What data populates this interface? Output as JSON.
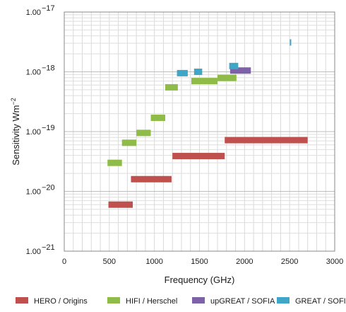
{
  "chart_data": {
    "type": "bar",
    "subtype": "horizontal-range",
    "xlabel": "Frequency (GHz)",
    "ylabel": "Sensitivity Wm",
    "ylabel_superscript": "−2",
    "xlim": [
      0,
      3000
    ],
    "ylim": [
      1e-21,
      1e-17
    ],
    "yscale": "log",
    "grid": true,
    "x_ticks": [
      {
        "value": 0,
        "label": "0"
      },
      {
        "value": 500,
        "label": "500"
      },
      {
        "value": 1000,
        "label": "1000"
      },
      {
        "value": 1500,
        "label": "1500"
      },
      {
        "value": 2000,
        "label": "2000"
      },
      {
        "value": 2500,
        "label": "2500"
      },
      {
        "value": 3000,
        "label": "3000"
      }
    ],
    "y_ticks": [
      {
        "value": 1e-21,
        "label": "1.00",
        "exp": "−21"
      },
      {
        "value": 1e-20,
        "label": "1.00",
        "exp": "−20"
      },
      {
        "value": 1e-19,
        "label": "1.00",
        "exp": "−19"
      },
      {
        "value": 1e-18,
        "label": "1.00",
        "exp": "−18"
      },
      {
        "value": 1e-17,
        "label": "1.00",
        "exp": "−17"
      }
    ],
    "legend_position": "bottom",
    "series": [
      {
        "name": "HERO / Origins",
        "color": "#c0504d",
        "segments": [
          {
            "x0": 490,
            "x1": 760,
            "y": 6e-21
          },
          {
            "x0": 740,
            "x1": 1190,
            "y": 1.6e-20
          },
          {
            "x0": 1200,
            "x1": 1780,
            "y": 3.9e-20
          },
          {
            "x0": 1780,
            "x1": 2700,
            "y": 7.2e-20
          }
        ]
      },
      {
        "name": "HIFI / Herschel",
        "color": "#8fbc48",
        "segments": [
          {
            "x0": 480,
            "x1": 640,
            "y": 3e-20
          },
          {
            "x0": 640,
            "x1": 800,
            "y": 6.5e-20
          },
          {
            "x0": 800,
            "x1": 960,
            "y": 9.5e-20
          },
          {
            "x0": 960,
            "x1": 1120,
            "y": 1.7e-19
          },
          {
            "x0": 1120,
            "x1": 1260,
            "y": 5.5e-19
          },
          {
            "x0": 1410,
            "x1": 1700,
            "y": 7e-19
          },
          {
            "x0": 1700,
            "x1": 1910,
            "y": 7.9e-19
          }
        ]
      },
      {
        "name": "upGREAT / SOFIA",
        "color": "#7e62a8",
        "segments": [
          {
            "x0": 1840,
            "x1": 2070,
            "y": 1.05e-18
          }
        ]
      },
      {
        "name": "GREAT / SOFIA",
        "color": "#3fa6c8",
        "segments": [
          {
            "x0": 1250,
            "x1": 1370,
            "y": 9.5e-19
          },
          {
            "x0": 1440,
            "x1": 1530,
            "y": 1e-18
          },
          {
            "x0": 1830,
            "x1": 1930,
            "y": 1.25e-18
          },
          {
            "x0": 2502,
            "x1": 2514,
            "y": 3.1e-18
          }
        ]
      }
    ]
  }
}
